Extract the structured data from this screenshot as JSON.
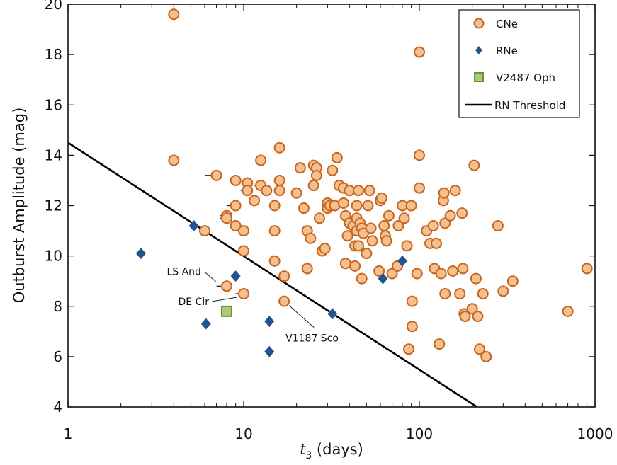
{
  "chart_data": {
    "type": "scatter",
    "xlabel": "t3 (days)",
    "xlabel_main": "t",
    "xlabel_sub": "3",
    "xlabel_rest": " (days)",
    "ylabel": "Outburst Amplitude (mag)",
    "xscale": "log",
    "xlim": [
      1,
      1000
    ],
    "ylim": [
      4,
      20
    ],
    "x_ticks": [
      1,
      10,
      100,
      1000
    ],
    "x_tick_labels": [
      "1",
      "10",
      "100",
      "1000"
    ],
    "y_ticks": [
      4,
      6,
      8,
      10,
      12,
      14,
      16,
      18,
      20
    ],
    "y_tick_labels": [
      "4",
      "6",
      "8",
      "10",
      "12",
      "14",
      "16",
      "18",
      "20"
    ],
    "grid": false,
    "legend_position": "top-right",
    "colors": {
      "cne_fill": "#f4c08f",
      "cne_edge": "#c8641b",
      "rne": "#23548f",
      "v2487_fill": "#a9c97b",
      "v2487_edge": "#6f8f3c",
      "threshold": "#000000"
    },
    "series": [
      {
        "name": "CNe",
        "marker": "circle",
        "points": [
          [
            4,
            19.6
          ],
          [
            4,
            13.8
          ],
          [
            6,
            11
          ],
          [
            7,
            13.2
          ],
          [
            8,
            11.6
          ],
          [
            8,
            11.5
          ],
          [
            8,
            8.8
          ],
          [
            9,
            13
          ],
          [
            9,
            12
          ],
          [
            9,
            11.2
          ],
          [
            10,
            8.5
          ],
          [
            10,
            11
          ],
          [
            10,
            10.2
          ],
          [
            10.5,
            12.9
          ],
          [
            10.5,
            12.6
          ],
          [
            11.5,
            12.2
          ],
          [
            12.5,
            13.8
          ],
          [
            12.5,
            12.8
          ],
          [
            13.5,
            12.6
          ],
          [
            15,
            12
          ],
          [
            15,
            11
          ],
          [
            15,
            9.8
          ],
          [
            16,
            14.3
          ],
          [
            16,
            13
          ],
          [
            16,
            12.6
          ],
          [
            17,
            9.2
          ],
          [
            17,
            8.2
          ],
          [
            20,
            12.5
          ],
          [
            21,
            13.5
          ],
          [
            22,
            11.9
          ],
          [
            23,
            11
          ],
          [
            23,
            9.5
          ],
          [
            24,
            10.7
          ],
          [
            25,
            13.6
          ],
          [
            25,
            12.8
          ],
          [
            26,
            13.5
          ],
          [
            26,
            13.2
          ],
          [
            27,
            11.5
          ],
          [
            28,
            10.2
          ],
          [
            29,
            10.3
          ],
          [
            30,
            12.1
          ],
          [
            30,
            11.9
          ],
          [
            31,
            12
          ],
          [
            32,
            13.4
          ],
          [
            33,
            12
          ],
          [
            34,
            13.9
          ],
          [
            35,
            12.8
          ],
          [
            37,
            12.7
          ],
          [
            37,
            12.1
          ],
          [
            38,
            11.6
          ],
          [
            38,
            9.7
          ],
          [
            39,
            10.8
          ],
          [
            40,
            12.6
          ],
          [
            40,
            11.3
          ],
          [
            42,
            11.2
          ],
          [
            43,
            10.4
          ],
          [
            43,
            9.6
          ],
          [
            44,
            11
          ],
          [
            44,
            12
          ],
          [
            44,
            11.5
          ],
          [
            45,
            10.4
          ],
          [
            45,
            12.6
          ],
          [
            46,
            11.3
          ],
          [
            47,
            11.1
          ],
          [
            47,
            9.1
          ],
          [
            48,
            10.9
          ],
          [
            50,
            10.1
          ],
          [
            51,
            12
          ],
          [
            52,
            12.6
          ],
          [
            53,
            11.1
          ],
          [
            54,
            10.6
          ],
          [
            59,
            9.4
          ],
          [
            60,
            12.2
          ],
          [
            61,
            12.3
          ],
          [
            63,
            11.2
          ],
          [
            64,
            10.8
          ],
          [
            65,
            10.6
          ],
          [
            67,
            11.6
          ],
          [
            70,
            9.3
          ],
          [
            75,
            9.6
          ],
          [
            76,
            11.2
          ],
          [
            80,
            12
          ],
          [
            82,
            11.5
          ],
          [
            85,
            10.4
          ],
          [
            87,
            6.3
          ],
          [
            90,
            12
          ],
          [
            91,
            8.2
          ],
          [
            91,
            7.2
          ],
          [
            97,
            9.3
          ],
          [
            100,
            18.1
          ],
          [
            100,
            14
          ],
          [
            100,
            12.7
          ],
          [
            110,
            11
          ],
          [
            115,
            10.5
          ],
          [
            120,
            11.2
          ],
          [
            122,
            9.5
          ],
          [
            125,
            10.5
          ],
          [
            130,
            6.5
          ],
          [
            133,
            9.3
          ],
          [
            137,
            12.2
          ],
          [
            138,
            12.5
          ],
          [
            140,
            11.3
          ],
          [
            140,
            8.5
          ],
          [
            150,
            11.6
          ],
          [
            155,
            9.4
          ],
          [
            160,
            12.6
          ],
          [
            170,
            8.5
          ],
          [
            175,
            11.7
          ],
          [
            177,
            9.5
          ],
          [
            180,
            7.7
          ],
          [
            182,
            7.6
          ],
          [
            200,
            7.9
          ],
          [
            205,
            13.6
          ],
          [
            210,
            9.1
          ],
          [
            215,
            7.6
          ],
          [
            220,
            6.3
          ],
          [
            230,
            8.5
          ],
          [
            240,
            6
          ],
          [
            280,
            11.2
          ],
          [
            300,
            8.6
          ],
          [
            340,
            9
          ],
          [
            700,
            7.8
          ],
          [
            900,
            9.5
          ]
        ]
      },
      {
        "name": "RNe",
        "marker": "diamond",
        "points": [
          [
            2.6,
            10.1
          ],
          [
            5.2,
            11.2
          ],
          [
            6.1,
            7.3
          ],
          [
            9,
            9.2
          ],
          [
            14,
            7.4
          ],
          [
            14,
            6.2
          ],
          [
            32,
            7.7
          ],
          [
            62,
            9.1
          ],
          [
            80,
            9.8
          ]
        ]
      },
      {
        "name": "V2487 Oph",
        "marker": "square",
        "points": [
          [
            8,
            7.8
          ]
        ]
      }
    ],
    "error_bars": [
      {
        "x": 7,
        "y": 13.2,
        "xmin": 6,
        "xmax": 7
      },
      {
        "x": 8,
        "y": 11.6,
        "xmin": 7.3,
        "xmax": 8
      },
      {
        "x": 8,
        "y": 11.5,
        "xmin": 7.3,
        "xmax": 8
      },
      {
        "x": 8,
        "y": 8.8,
        "xmin": 7,
        "xmax": 8
      },
      {
        "x": 9,
        "y": 12,
        "xmin": 8,
        "xmax": 9
      },
      {
        "x": 9,
        "y": 11.2,
        "xmin": 8.4,
        "xmax": 9
      },
      {
        "x": 10,
        "y": 8.5,
        "xmin": 9,
        "xmax": 10
      },
      {
        "x": 10.5,
        "y": 12.9,
        "xmin": 9.5,
        "xmax": 10.5
      },
      {
        "x": 10.5,
        "y": 12.6,
        "xmin": 9.6,
        "xmax": 10.5
      },
      {
        "x": 12.5,
        "y": 12.8,
        "xmin": 11.5,
        "xmax": 12.5
      }
    ],
    "threshold_line": {
      "name": "RN Threshold",
      "points": [
        [
          1,
          14.5
        ],
        [
          213,
          4
        ]
      ]
    },
    "annotations": [
      {
        "text": "LS And",
        "x": 8,
        "y": 8.8
      },
      {
        "text": "DE Cir",
        "x": 10,
        "y": 8.5
      },
      {
        "text": "V1187 Sco",
        "x": 17,
        "y": 8.2
      }
    ],
    "legend": {
      "items": [
        {
          "label": "CNe",
          "marker": "circle"
        },
        {
          "label": "RNe",
          "marker": "diamond"
        },
        {
          "label": "V2487 Oph",
          "marker": "square"
        },
        {
          "label": "RN Threshold",
          "marker": "line"
        }
      ]
    }
  }
}
